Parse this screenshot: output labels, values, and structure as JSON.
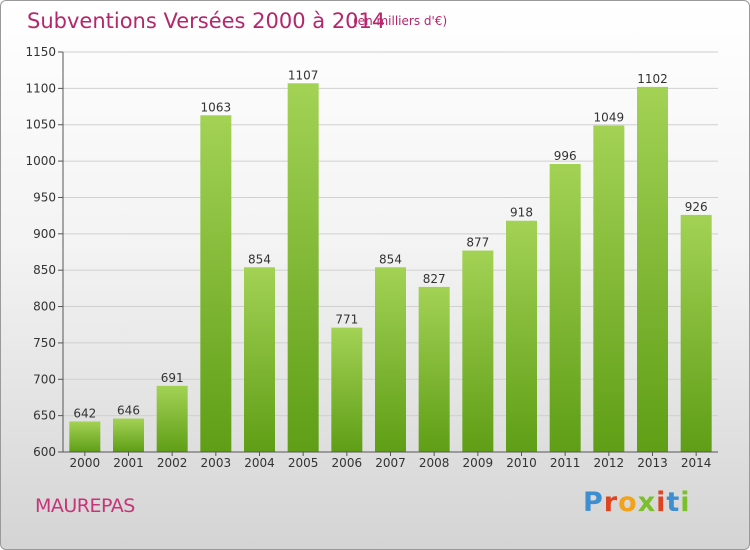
{
  "title": "Subventions Versées 2000 à 2014",
  "subtitle": "(en milliers d'€)",
  "commune": "MAUREPAS",
  "logo": {
    "letters": [
      "P",
      "r",
      "o",
      "x",
      "i",
      "t",
      "i"
    ],
    "colors": [
      "#3d8fd1",
      "#e0431f",
      "#f1a31b",
      "#7bbf2a",
      "#e0431f",
      "#3d8fd1",
      "#7bbf2a"
    ]
  },
  "colors": {
    "bar_top": "#a3d255",
    "bar_bottom": "#5f9e16",
    "title": "#b5266b",
    "grid": "#d0d0d0"
  },
  "chart_data": {
    "type": "bar",
    "title": "Subventions Versées 2000 à 2014",
    "subtitle": "(en milliers d'€)",
    "categories": [
      "2000",
      "2001",
      "2002",
      "2003",
      "2004",
      "2005",
      "2006",
      "2007",
      "2008",
      "2009",
      "2010",
      "2011",
      "2012",
      "2013",
      "2014"
    ],
    "values": [
      642,
      646,
      691,
      1063,
      854,
      1107,
      771,
      854,
      827,
      877,
      918,
      996,
      1049,
      1102,
      926
    ],
    "ylim": [
      600,
      1150
    ],
    "yticks": [
      600,
      650,
      700,
      750,
      800,
      850,
      900,
      950,
      1000,
      1050,
      1100,
      1150
    ],
    "grid": true,
    "data_labels": true
  }
}
